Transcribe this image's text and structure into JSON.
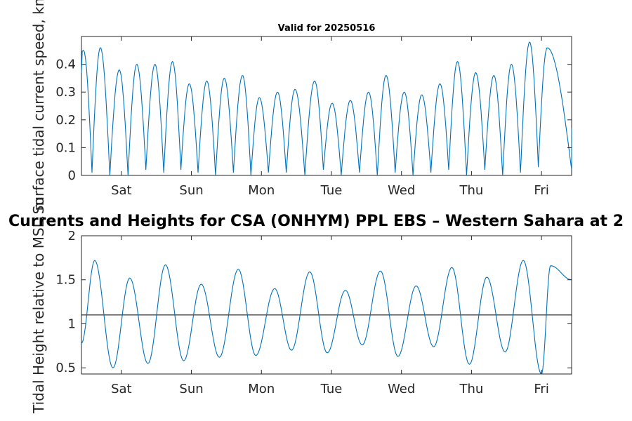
{
  "figure": {
    "main_title": "Currents and Heights for CSA (ONHYM) PPL EBS  – Western Sahara at 2",
    "top_title": "Valid for 20250516"
  },
  "chart_data": [
    {
      "type": "line",
      "title": "Valid for 20250516",
      "xlabel": "",
      "ylabel": "Surface tidal current speed, kn",
      "x_tick_labels": [
        "Sat",
        "Sun",
        "Mon",
        "Tue",
        "Wed",
        "Thu",
        "Fri"
      ],
      "xlim_days": [
        0,
        7
      ],
      "ylim": [
        0,
        0.5
      ],
      "yticks": [
        0,
        0.1,
        0.2,
        0.3,
        0.4
      ],
      "ytick_labels": [
        "0",
        "0.1",
        "0.2",
        "0.3",
        "0.4"
      ],
      "grid": false,
      "color": "#0072BD",
      "series": [
        {
          "x_days": [
            0.03,
            0.27,
            0.54,
            0.79,
            1.05,
            1.3,
            1.54,
            1.79,
            2.04,
            2.3,
            2.54,
            2.8,
            3.05,
            3.33,
            3.58,
            3.84,
            4.1,
            4.35,
            4.61,
            4.86,
            5.12,
            5.37,
            5.63,
            5.89,
            6.14,
            6.4,
            6.65
          ],
          "peak_speed": [
            0.45,
            0.46,
            0.38,
            0.4,
            0.4,
            0.41,
            0.33,
            0.34,
            0.35,
            0.36,
            0.28,
            0.3,
            0.31,
            0.34,
            0.26,
            0.27,
            0.3,
            0.36,
            0.3,
            0.29,
            0.33,
            0.41,
            0.37,
            0.36,
            0.4,
            0.48,
            0.46
          ],
          "min_speed": [
            0.01,
            0.0,
            0.0,
            0.02,
            0.01,
            0.02,
            0.01,
            0.0,
            0.01,
            0.0,
            0.01,
            0.01,
            0.0,
            0.02,
            0.0,
            0.01,
            0.0,
            0.01,
            0.0,
            0.01,
            0.02,
            0.0,
            0.02,
            0.0,
            0.01,
            0.03,
            0.02
          ]
        }
      ]
    },
    {
      "type": "line",
      "title": "",
      "xlabel": "",
      "ylabel": "Tidal Height relative to MSL, m",
      "x_tick_labels": [
        "Sat",
        "Sun",
        "Mon",
        "Tue",
        "Wed",
        "Thu",
        "Fri"
      ],
      "xlim_days": [
        0,
        7
      ],
      "ylim": [
        0.43,
        2.0
      ],
      "yticks": [
        0.5,
        1,
        1.5,
        2
      ],
      "ytick_labels": [
        "0.5",
        "1",
        "1.5",
        "2"
      ],
      "grid": false,
      "reference_level": 1.1,
      "color": "#0072BD",
      "series": [
        {
          "extremes_day": [
            0.0,
            0.19,
            0.45,
            0.69,
            0.95,
            1.2,
            1.46,
            1.71,
            1.97,
            2.24,
            2.49,
            2.76,
            3.0,
            3.26,
            3.51,
            3.77,
            4.01,
            4.27,
            4.52,
            4.78,
            5.03,
            5.29,
            5.54,
            5.79,
            6.05,
            6.31,
            6.57,
            6.7,
            7.0
          ],
          "extremes_height": [
            0.78,
            1.72,
            0.5,
            1.52,
            0.55,
            1.67,
            0.58,
            1.45,
            0.62,
            1.62,
            0.64,
            1.4,
            0.7,
            1.59,
            0.67,
            1.38,
            0.76,
            1.6,
            0.63,
            1.43,
            0.74,
            1.64,
            0.54,
            1.53,
            0.68,
            1.72,
            0.43,
            1.66,
            1.5
          ]
        }
      ]
    }
  ]
}
